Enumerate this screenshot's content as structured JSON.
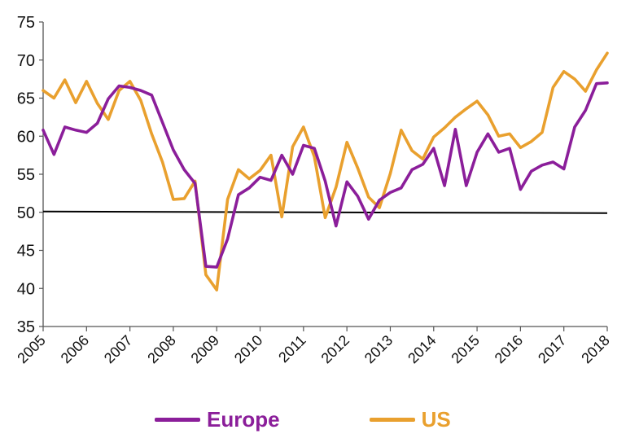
{
  "colors": {
    "europe": "#8B1E9A",
    "us": "#E9A02E",
    "axis": "#555555",
    "threshold": "#000000"
  },
  "chart_data": {
    "type": "line",
    "title": "",
    "xlabel": "",
    "ylabel": "",
    "ylim": [
      35,
      75
    ],
    "xlim": [
      2005,
      2018
    ],
    "y_ticks": [
      35,
      40,
      45,
      50,
      55,
      60,
      65,
      70,
      75
    ],
    "x_ticks": [
      "2005",
      "2006",
      "2007",
      "2008",
      "2009",
      "2010",
      "2011",
      "2012",
      "2013",
      "2014",
      "2015",
      "2016",
      "2017",
      "2018"
    ],
    "grid": false,
    "legend_position": "bottom",
    "threshold": 50,
    "series": [
      {
        "name": "Europe",
        "color": "#8B1E9A",
        "x": [
          2005.0,
          2005.25,
          2005.5,
          2005.75,
          2006.0,
          2006.25,
          2006.5,
          2006.75,
          2007.0,
          2007.25,
          2007.5,
          2007.75,
          2008.0,
          2008.25,
          2008.5,
          2008.75,
          2009.0,
          2009.25,
          2009.5,
          2009.75,
          2010.0,
          2010.25,
          2010.5,
          2010.75,
          2011.0,
          2011.25,
          2011.5,
          2011.75,
          2012.0,
          2012.25,
          2012.5,
          2012.75,
          2013.0,
          2013.25,
          2013.5,
          2013.75,
          2014.0,
          2014.25,
          2014.5,
          2014.75,
          2015.0,
          2015.25,
          2015.5,
          2015.75,
          2016.0,
          2016.25,
          2016.5,
          2016.75,
          2017.0,
          2017.25,
          2017.5,
          2017.75,
          2018.0
        ],
        "values": [
          60.8,
          57.6,
          61.2,
          60.8,
          60.5,
          61.7,
          64.9,
          66.6,
          66.4,
          66.0,
          65.4,
          61.8,
          58.2,
          55.6,
          53.8,
          42.9,
          42.8,
          46.5,
          52.3,
          53.2,
          54.6,
          54.2,
          57.5,
          55.0,
          58.8,
          58.4,
          54.1,
          48.2,
          54.0,
          52.1,
          49.1,
          51.6,
          52.6,
          53.2,
          55.6,
          56.3,
          58.4,
          53.5,
          60.9,
          53.5,
          57.9,
          60.3,
          57.9,
          58.4,
          53.0,
          55.4,
          56.2,
          56.6,
          55.7,
          61.2,
          63.4,
          66.9,
          67.0
        ]
      },
      {
        "name": "US",
        "color": "#E9A02E",
        "x": [
          2005.0,
          2005.25,
          2005.5,
          2005.75,
          2006.0,
          2006.25,
          2006.5,
          2006.75,
          2007.0,
          2007.25,
          2007.5,
          2007.75,
          2008.0,
          2008.25,
          2008.5,
          2008.75,
          2009.0,
          2009.25,
          2009.5,
          2009.75,
          2010.0,
          2010.25,
          2010.5,
          2010.75,
          2011.0,
          2011.25,
          2011.5,
          2011.75,
          2012.0,
          2012.25,
          2012.5,
          2012.75,
          2013.0,
          2013.25,
          2013.5,
          2013.75,
          2014.0,
          2014.25,
          2014.5,
          2014.75,
          2015.0,
          2015.25,
          2015.5,
          2015.75,
          2016.0,
          2016.25,
          2016.5,
          2016.75,
          2017.0,
          2017.25,
          2017.5,
          2017.75,
          2018.0
        ],
        "values": [
          66.0,
          65.0,
          67.4,
          64.4,
          67.2,
          64.3,
          62.2,
          66.0,
          67.2,
          64.7,
          60.3,
          56.6,
          51.7,
          51.8,
          54.1,
          41.8,
          39.8,
          51.7,
          55.6,
          54.4,
          55.5,
          57.5,
          49.4,
          58.6,
          61.2,
          57.3,
          49.3,
          53.3,
          59.2,
          55.8,
          52.0,
          50.6,
          55.1,
          60.8,
          58.1,
          57.0,
          59.9,
          61.1,
          62.5,
          63.6,
          64.6,
          62.8,
          60.0,
          60.3,
          58.5,
          59.3,
          60.5,
          66.4,
          68.5,
          67.5,
          65.9,
          68.7,
          70.9
        ]
      }
    ]
  }
}
